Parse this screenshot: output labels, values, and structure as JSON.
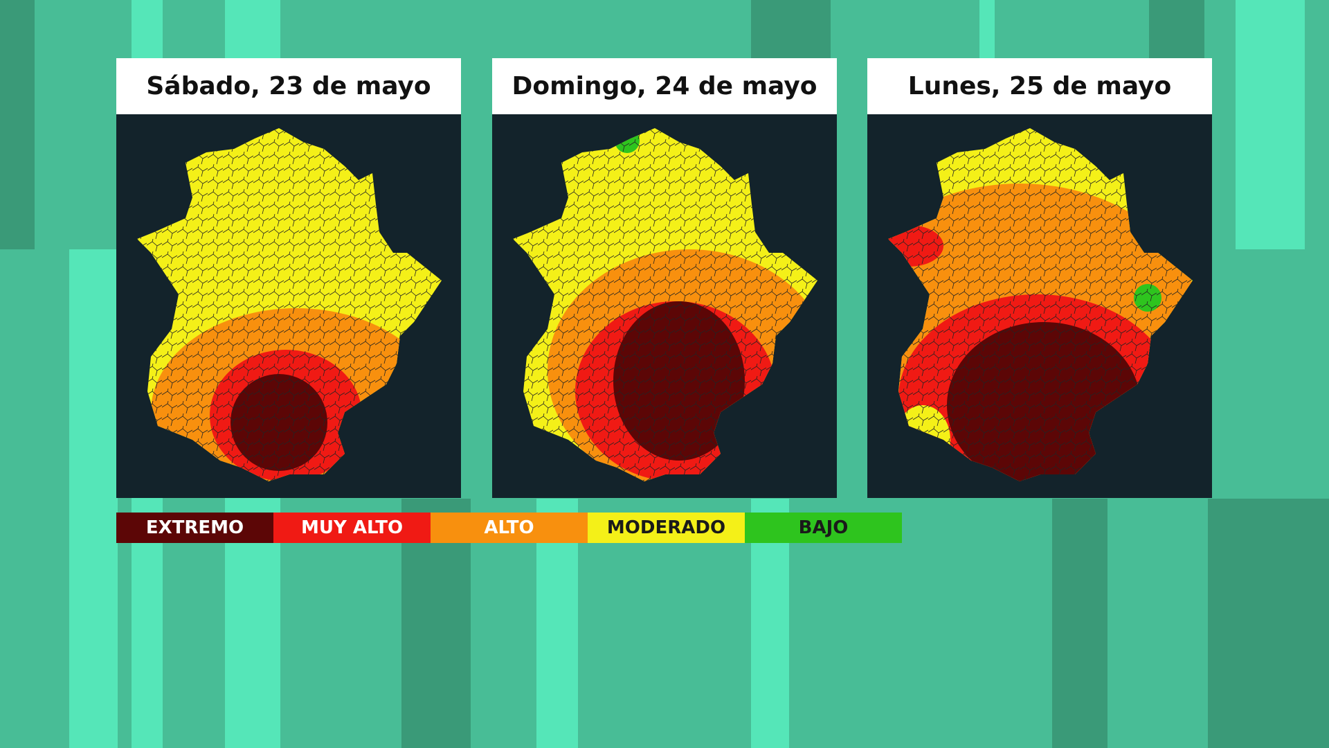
{
  "panels": [
    {
      "title": "Sábado, 23 de mayo"
    },
    {
      "title": "Domingo, 24 de mayo"
    },
    {
      "title": "Lunes, 25 de mayo"
    }
  ],
  "legend": [
    {
      "label": "EXTREMO",
      "color": "#5c0606"
    },
    {
      "label": "MUY ALTO",
      "color": "#f01a14"
    },
    {
      "label": "ALTO",
      "color": "#f8900e"
    },
    {
      "label": "MODERADO",
      "color": "#f4f018"
    },
    {
      "label": "BAJO",
      "color": "#2ec41e"
    }
  ]
}
